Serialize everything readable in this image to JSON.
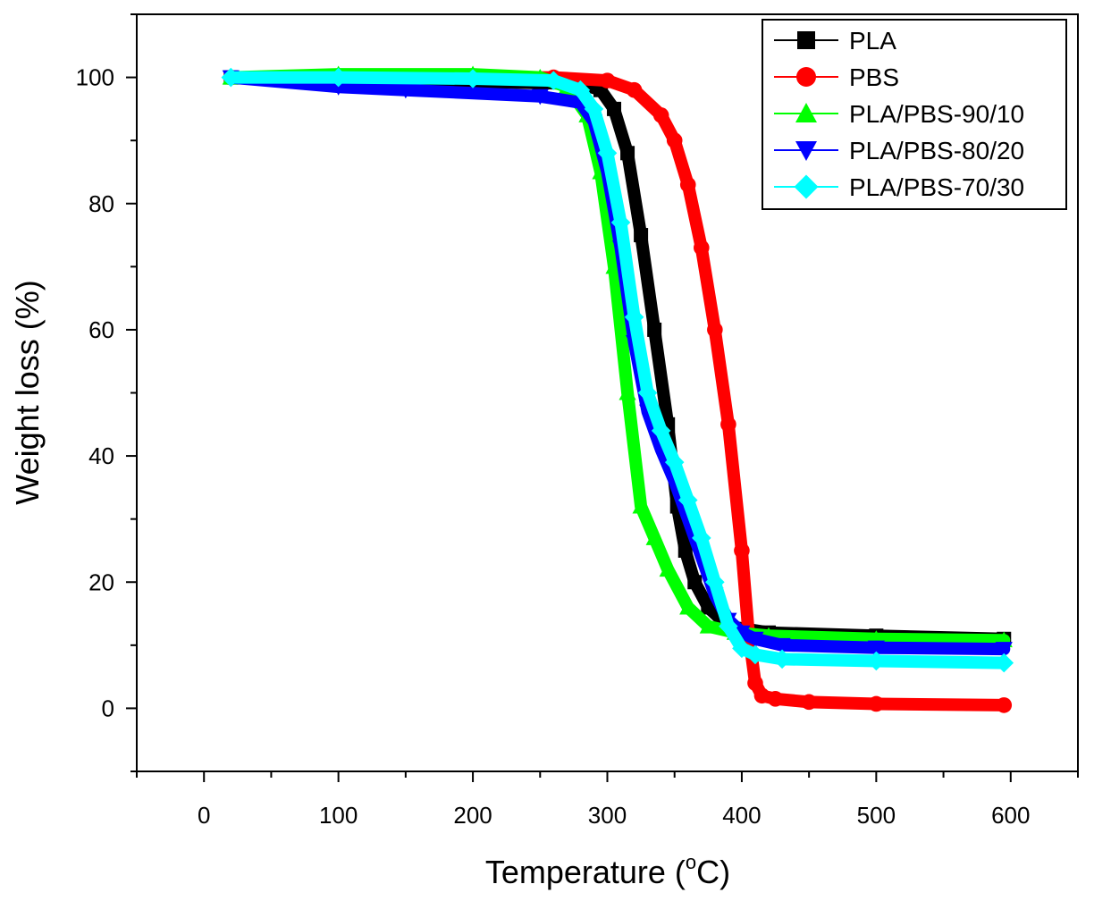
{
  "chart_data": {
    "type": "line",
    "title": "",
    "xlabel": "Temperature (",
    "xlabel_sup": "o",
    "xlabel_unit": "C)",
    "ylabel": "Weight loss (%)",
    "xlim": [
      -50,
      650
    ],
    "ylim": [
      -10,
      110
    ],
    "xticks": [
      0,
      100,
      200,
      300,
      400,
      500,
      600
    ],
    "yticks": [
      0,
      20,
      40,
      60,
      80,
      100
    ],
    "x_minor_step": 50,
    "y_minor_step": 10,
    "grid": false,
    "legend_position": "top-right",
    "series": [
      {
        "name": "PLA",
        "color": "#000000",
        "marker": "square",
        "x": [
          20,
          100,
          200,
          250,
          280,
          295,
          305,
          315,
          325,
          335,
          345,
          352,
          358,
          365,
          375,
          390,
          420,
          500,
          595
        ],
        "y": [
          100,
          99.5,
          99.3,
          99.1,
          99,
          98,
          95,
          88,
          75,
          60,
          45,
          32,
          25,
          20,
          16,
          13,
          12,
          11.5,
          11
        ]
      },
      {
        "name": "PBS",
        "color": "#ff0000",
        "marker": "circle",
        "x": [
          20,
          100,
          200,
          260,
          300,
          320,
          340,
          350,
          360,
          370,
          380,
          390,
          400,
          405,
          410,
          415,
          425,
          450,
          500,
          595
        ],
        "y": [
          100,
          100,
          100,
          100,
          99.5,
          98,
          94,
          90,
          83,
          73,
          60,
          45,
          25,
          12,
          4,
          2,
          1.5,
          1,
          0.7,
          0.5
        ]
      },
      {
        "name": "PLA/PBS-90/10",
        "color": "#00ff00",
        "marker": "triangle-up",
        "x": [
          20,
          100,
          200,
          250,
          270,
          285,
          295,
          305,
          315,
          325,
          335,
          345,
          360,
          375,
          395,
          420,
          500,
          595
        ],
        "y": [
          100,
          100.5,
          100.5,
          100,
          98.5,
          94,
          85,
          70,
          50,
          32,
          27,
          22,
          16,
          13,
          12,
          11.5,
          11,
          10.8
        ]
      },
      {
        "name": "PLA/PBS-80/20",
        "color": "#0000ff",
        "marker": "triangle-down",
        "x": [
          20,
          100,
          150,
          250,
          280,
          290,
          300,
          310,
          320,
          330,
          340,
          350,
          360,
          370,
          380,
          390,
          400,
          410,
          430,
          500,
          595
        ],
        "y": [
          100,
          98.5,
          98,
          97,
          96,
          93,
          85,
          73,
          58,
          47,
          41,
          36,
          30,
          24,
          18,
          14,
          12,
          11,
          10,
          9.6,
          9.4
        ]
      },
      {
        "name": "PLA/PBS-70/30",
        "color": "#00ffff",
        "marker": "diamond",
        "x": [
          20,
          100,
          200,
          260,
          280,
          290,
          300,
          310,
          320,
          330,
          340,
          350,
          360,
          370,
          380,
          390,
          400,
          410,
          430,
          500,
          595
        ],
        "y": [
          100,
          100,
          99.8,
          99.5,
          98,
          95,
          88,
          77,
          62,
          50,
          44,
          39,
          33,
          27,
          20,
          13,
          9.5,
          8.5,
          7.8,
          7.5,
          7.2
        ]
      }
    ]
  }
}
